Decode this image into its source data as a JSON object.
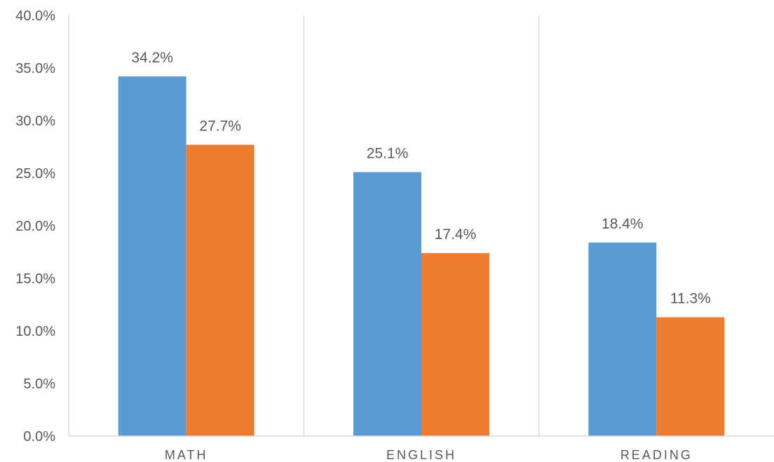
{
  "chart_data": {
    "type": "bar",
    "categories": [
      "MATH",
      "ENGLISH",
      "READING"
    ],
    "series": [
      {
        "values": [
          34.2,
          25.1,
          18.4
        ],
        "color": "#5B9BD5"
      },
      {
        "values": [
          27.7,
          17.4,
          11.3
        ],
        "color": "#ED7D31"
      }
    ],
    "data_labels": [
      [
        "34.2%",
        "25.1%",
        "18.4%"
      ],
      [
        "27.7%",
        "17.4%",
        "11.3%"
      ]
    ],
    "yticks": [
      "0.0%",
      "5.0%",
      "10.0%",
      "15.0%",
      "20.0%",
      "25.0%",
      "30.0%",
      "35.0%",
      "40.0%"
    ],
    "ylim": [
      0,
      40
    ],
    "title": "",
    "xlabel": "",
    "ylabel": "",
    "grid": "vertical separators between categories",
    "legend": "none"
  }
}
